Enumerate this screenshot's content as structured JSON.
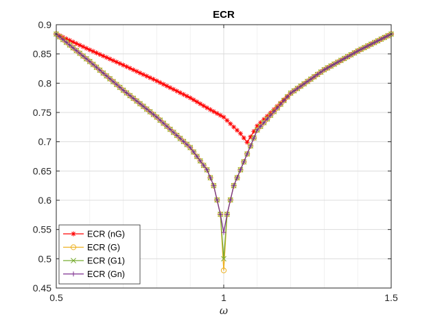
{
  "chart_data": {
    "type": "line",
    "title": "ECR",
    "xlabel": "ω",
    "ylabel": "",
    "xlim": [
      0.5,
      1.5
    ],
    "ylim": [
      0.45,
      0.9
    ],
    "xticks": [
      0.5,
      1,
      1.5
    ],
    "xtick_labels": [
      "0.5",
      "1",
      "1.5"
    ],
    "yticks": [
      0.45,
      0.5,
      0.55,
      0.6,
      0.65,
      0.7,
      0.75,
      0.8,
      0.85,
      0.9
    ],
    "ytick_labels": [
      "0.45",
      "0.5",
      "0.55",
      "0.6",
      "0.65",
      "0.7",
      "0.75",
      "0.8",
      "0.85",
      "0.9"
    ],
    "grid": true,
    "legend_position": "bottom-left",
    "x_step": 0.01,
    "series": [
      {
        "name": "ECR (nG)",
        "color": "#ff0000",
        "marker": "asterisk",
        "points": [
          [
            0.5,
            0.884
          ],
          [
            0.6,
            0.857
          ],
          [
            0.7,
            0.831
          ],
          [
            0.8,
            0.804
          ],
          [
            0.9,
            0.775
          ],
          [
            0.95,
            0.758
          ],
          [
            1.0,
            0.742
          ],
          [
            1.05,
            0.714
          ],
          [
            1.07,
            0.699
          ],
          [
            1.1,
            0.727
          ],
          [
            1.2,
            0.783
          ],
          [
            1.3,
            0.823
          ],
          [
            1.4,
            0.855
          ],
          [
            1.5,
            0.884
          ]
        ]
      },
      {
        "name": "ECR (G)",
        "color": "#edb120",
        "marker": "circle",
        "points": [
          [
            0.5,
            0.884
          ],
          [
            0.6,
            0.837
          ],
          [
            0.7,
            0.788
          ],
          [
            0.8,
            0.742
          ],
          [
            0.9,
            0.69
          ],
          [
            0.95,
            0.652
          ],
          [
            0.97,
            0.625
          ],
          [
            0.99,
            0.576
          ],
          [
            1.0,
            0.48
          ],
          [
            1.01,
            0.576
          ],
          [
            1.03,
            0.625
          ],
          [
            1.05,
            0.652
          ],
          [
            1.1,
            0.72
          ],
          [
            1.2,
            0.783
          ],
          [
            1.3,
            0.823
          ],
          [
            1.4,
            0.855
          ],
          [
            1.5,
            0.884
          ]
        ]
      },
      {
        "name": "ECR (G1)",
        "color": "#77ac30",
        "marker": "x",
        "points": [
          [
            0.5,
            0.884
          ],
          [
            0.6,
            0.837
          ],
          [
            0.7,
            0.788
          ],
          [
            0.8,
            0.742
          ],
          [
            0.9,
            0.69
          ],
          [
            0.95,
            0.652
          ],
          [
            0.97,
            0.625
          ],
          [
            0.99,
            0.576
          ],
          [
            1.0,
            0.5
          ],
          [
            1.01,
            0.576
          ],
          [
            1.03,
            0.625
          ],
          [
            1.05,
            0.652
          ],
          [
            1.1,
            0.72
          ],
          [
            1.2,
            0.783
          ],
          [
            1.3,
            0.823
          ],
          [
            1.4,
            0.855
          ],
          [
            1.5,
            0.884
          ]
        ]
      },
      {
        "name": "ECR (Gn)",
        "color": "#7e2f8e",
        "marker": "plus",
        "points": [
          [
            0.5,
            0.884
          ],
          [
            0.6,
            0.837
          ],
          [
            0.7,
            0.788
          ],
          [
            0.8,
            0.742
          ],
          [
            0.9,
            0.69
          ],
          [
            0.95,
            0.652
          ],
          [
            0.97,
            0.625
          ],
          [
            0.99,
            0.576
          ],
          [
            1.0,
            0.545
          ],
          [
            1.01,
            0.576
          ],
          [
            1.03,
            0.625
          ],
          [
            1.05,
            0.652
          ],
          [
            1.1,
            0.72
          ],
          [
            1.2,
            0.783
          ],
          [
            1.3,
            0.823
          ],
          [
            1.4,
            0.855
          ],
          [
            1.5,
            0.884
          ]
        ]
      }
    ]
  }
}
